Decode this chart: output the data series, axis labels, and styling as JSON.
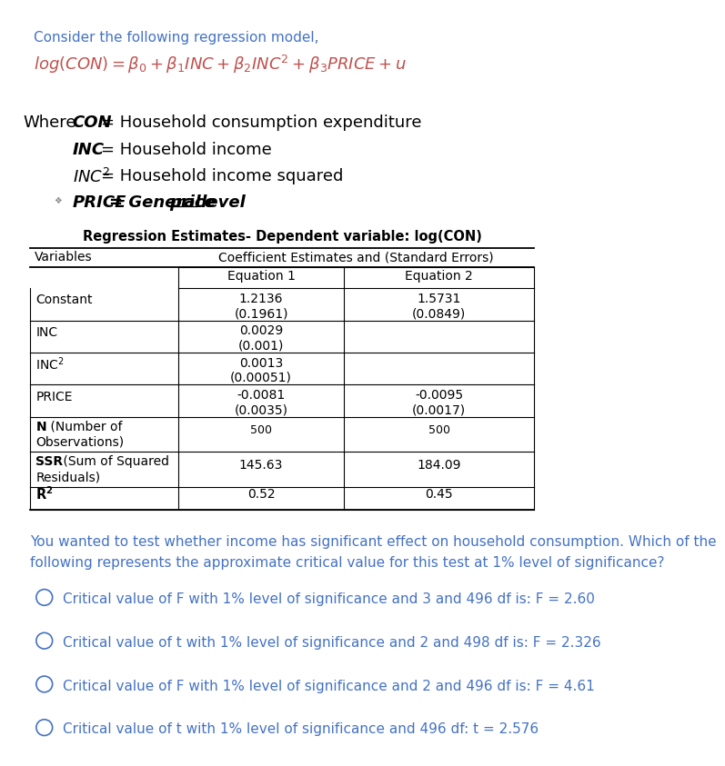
{
  "bg_color": "#ffffff",
  "header_text": "Consider the following regression model,",
  "header_color": "#4472C4",
  "formula_color": "#C0504D",
  "table_title": "Regression Estimates- Dependent variable: log(CON)",
  "col_header": "Coefficient Estimates and (Standard Errors)",
  "question_text_line1": "You wanted to test whether income has significant effect on household consumption. Which of the",
  "question_text_line2": "following represents the approximate critical value for this test at 1% level of significance?",
  "question_color": "#4472C4",
  "options": [
    "Critical value of F with 1% level of significance and 3 and 496 df is: F = 2.60",
    "Critical value of t with 1% level of significance and 2 and 498 df is: F = 2.326",
    "Critical value of F with 1% level of significance and 2 and 496 df is: F = 4.61",
    "Critical value of t with 1% level of significance and 496 df: t = 2.576"
  ],
  "options_color": "#4472C4"
}
